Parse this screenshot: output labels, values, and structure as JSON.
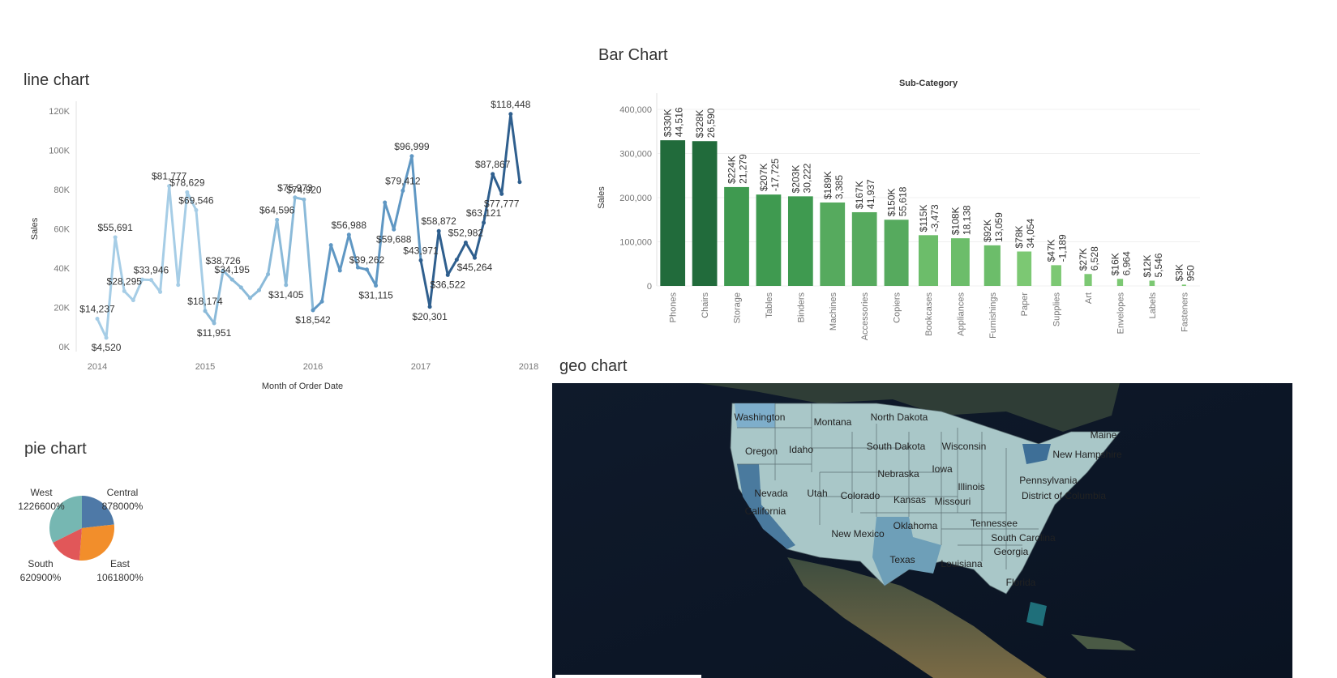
{
  "titles": {
    "line": "line chart",
    "bar": "Bar Chart",
    "pie": "pie chart",
    "geo": "geo chart"
  },
  "chart_data": [
    {
      "type": "line",
      "xlabel": "Month of Order Date",
      "ylabel": "Sales",
      "ylim": [
        0,
        120000
      ],
      "xlim": [
        "2014-01",
        "2018-01"
      ],
      "yticks": [
        "0K",
        "20K",
        "40K",
        "60K",
        "80K",
        "100K",
        "120K"
      ],
      "xticks": [
        "2014",
        "2015",
        "2016",
        "2017",
        "2018"
      ],
      "colors": [
        "#a6cde6",
        "#8bbad9",
        "#5f97c3",
        "#2f5f8e"
      ],
      "x": [
        "2014-01",
        "2014-02",
        "2014-03",
        "2014-04",
        "2014-05",
        "2014-06",
        "2014-07",
        "2014-08",
        "2014-09",
        "2014-10",
        "2014-11",
        "2014-12",
        "2015-01",
        "2015-02",
        "2015-03",
        "2015-04",
        "2015-05",
        "2015-06",
        "2015-07",
        "2015-08",
        "2015-09",
        "2015-10",
        "2015-11",
        "2015-12",
        "2016-01",
        "2016-02",
        "2016-03",
        "2016-04",
        "2016-05",
        "2016-06",
        "2016-07",
        "2016-08",
        "2016-09",
        "2016-10",
        "2016-11",
        "2016-12",
        "2017-01",
        "2017-02",
        "2017-03",
        "2017-04",
        "2017-05",
        "2017-06",
        "2017-07",
        "2017-08",
        "2017-09",
        "2017-10",
        "2017-11",
        "2017-12"
      ],
      "values": [
        14237,
        4520,
        55691,
        28295,
        23648,
        34196,
        33946,
        27909,
        81777,
        31453,
        78629,
        69546,
        18174,
        11951,
        38726,
        34195,
        30132,
        24797,
        28765,
        36898,
        64596,
        31405,
        75973,
        74920,
        18542,
        22979,
        51716,
        38750,
        56988,
        40344,
        39262,
        31115,
        73410,
        59688,
        79412,
        96999,
        43971,
        20301,
        58872,
        36522,
        44261,
        52982,
        45264,
        63121,
        87867,
        77777,
        118448,
        83829
      ],
      "labels": [
        {
          "i": 0,
          "text": "$14,237"
        },
        {
          "i": 1,
          "text": "$4,520"
        },
        {
          "i": 2,
          "text": "$55,691"
        },
        {
          "i": 3,
          "text": "$28,295"
        },
        {
          "i": 6,
          "text": "$33,946"
        },
        {
          "i": 8,
          "text": "$81,777"
        },
        {
          "i": 10,
          "text": "$78,629"
        },
        {
          "i": 11,
          "text": "$69,546"
        },
        {
          "i": 12,
          "text": "$18,174"
        },
        {
          "i": 13,
          "text": "$11,951"
        },
        {
          "i": 14,
          "text": "$38,726"
        },
        {
          "i": 15,
          "text": "$34,195"
        },
        {
          "i": 20,
          "text": "$64,596"
        },
        {
          "i": 21,
          "text": "$31,405"
        },
        {
          "i": 22,
          "text": "$75,973"
        },
        {
          "i": 23,
          "text": "$74,920"
        },
        {
          "i": 24,
          "text": "$18,542"
        },
        {
          "i": 28,
          "text": "$56,988"
        },
        {
          "i": 30,
          "text": "$39,262"
        },
        {
          "i": 31,
          "text": "$31,115"
        },
        {
          "i": 33,
          "text": "$59,688"
        },
        {
          "i": 34,
          "text": "$79,412"
        },
        {
          "i": 35,
          "text": "$96,999"
        },
        {
          "i": 36,
          "text": "$43,971"
        },
        {
          "i": 37,
          "text": "$20,301"
        },
        {
          "i": 38,
          "text": "$58,872"
        },
        {
          "i": 39,
          "text": "$36,522"
        },
        {
          "i": 41,
          "text": "$52,982"
        },
        {
          "i": 42,
          "text": "$45,264"
        },
        {
          "i": 43,
          "text": "$63,121"
        },
        {
          "i": 44,
          "text": "$87,867"
        },
        {
          "i": 45,
          "text": "$77,777"
        },
        {
          "i": 46,
          "text": "$118,448"
        }
      ]
    },
    {
      "type": "bar",
      "title": "Sub-Category",
      "ylabel": "Sales",
      "ylim": [
        0,
        400000
      ],
      "yticks": [
        "0",
        "100,000",
        "200,000",
        "300,000",
        "400,000"
      ],
      "categories": [
        "Phones",
        "Chairs",
        "Storage",
        "Tables",
        "Binders",
        "Machines",
        "Accessories",
        "Copiers",
        "Bookcases",
        "Appliances",
        "Furnishings",
        "Paper",
        "Supplies",
        "Art",
        "Envelopes",
        "Labels",
        "Fasteners"
      ],
      "values": [
        330000,
        328000,
        224000,
        207000,
        203000,
        189000,
        167000,
        150000,
        115000,
        108000,
        92000,
        78000,
        47000,
        27000,
        16000,
        12000,
        3000
      ],
      "value_labels": [
        "$330K",
        "$328K",
        "$224K",
        "$207K",
        "$203K",
        "$189K",
        "$167K",
        "$150K",
        "$115K",
        "$108K",
        "$92K",
        "$78K",
        "$47K",
        "$27K",
        "$16K",
        "$12K",
        "$3K"
      ],
      "profit_labels": [
        "44,516",
        "26,590",
        "21,279",
        "-17,725",
        "30,222",
        "3,385",
        "41,937",
        "55,618",
        "-3,473",
        "18,138",
        "13,059",
        "34,054",
        "-1,189",
        "6,528",
        "6,964",
        "5,546",
        "950"
      ],
      "colors": [
        "#216b3b",
        "#216b3b",
        "#3f9a50",
        "#3f9a50",
        "#3f9a50",
        "#56aa5e",
        "#56aa5e",
        "#56aa5e",
        "#6cbd6a",
        "#6cbd6a",
        "#6cbd6a",
        "#7cc873",
        "#7cc873",
        "#7cc873",
        "#7cc873",
        "#7cc873",
        "#7cc873"
      ]
    },
    {
      "type": "pie",
      "slices": [
        {
          "name": "Central",
          "value": 878000,
          "label": "878000%",
          "color": "#4e79a7"
        },
        {
          "name": "East",
          "value": 1061800,
          "label": "1061800%",
          "color": "#f28e2b"
        },
        {
          "name": "South",
          "value": 620900,
          "label": "620900%",
          "color": "#e15759"
        },
        {
          "name": "West",
          "value": 1226600,
          "label": "1226600%",
          "color": "#76b7b2"
        }
      ]
    }
  ],
  "geo": {
    "states": [
      "Washington",
      "Montana",
      "North Dakota",
      "Oregon",
      "Idaho",
      "South Dakota",
      "Wisconsin",
      "Maine",
      "New Hampshire",
      "Nebraska",
      "Iowa",
      "Illinois",
      "Pennsylvania",
      "Nevada",
      "Utah",
      "Colorado",
      "Kansas",
      "Missouri",
      "District of Columbia",
      "California",
      "Tennessee",
      "New Mexico",
      "Oklahoma",
      "South Carolina",
      "Georgia",
      "Texas",
      "Louisiana",
      "Florida"
    ]
  }
}
